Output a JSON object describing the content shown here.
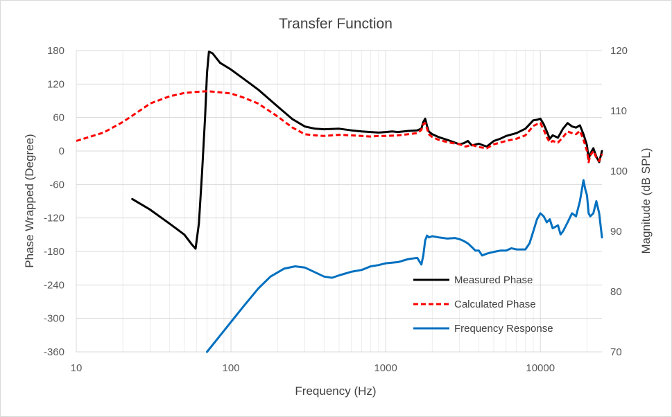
{
  "chart_data": {
    "type": "line",
    "title": "Transfer Function",
    "xlabel": "Frequency (Hz)",
    "ylabel": "Phase Wrapped (Degree)",
    "y2label": "Magnitude (dB SPL)",
    "x_scale": "log",
    "xlim": [
      10,
      25000
    ],
    "ylim": [
      -360,
      180
    ],
    "y2lim": [
      70,
      120
    ],
    "grid": true,
    "legend_position": "bottom-right",
    "x_ticks": [
      "10",
      "100",
      "1000",
      "10000"
    ],
    "y_ticks": [
      "180",
      "120",
      "60",
      "0",
      "-60",
      "-120",
      "-180",
      "-240",
      "-300",
      "-360"
    ],
    "y2_ticks": [
      "120",
      "110",
      "100",
      "90",
      "80",
      "70"
    ],
    "series": [
      {
        "name": "Measured Phase",
        "axis": "left",
        "color": "#000000",
        "style": "solid",
        "points": [
          [
            23,
            -86
          ],
          [
            30,
            -105
          ],
          [
            40,
            -130
          ],
          [
            50,
            -150
          ],
          [
            56,
            -168
          ],
          [
            59,
            -175
          ],
          [
            62,
            -130
          ],
          [
            65,
            -40
          ],
          [
            68,
            60
          ],
          [
            70,
            140
          ],
          [
            72,
            178
          ],
          [
            76,
            175
          ],
          [
            85,
            158
          ],
          [
            100,
            146
          ],
          [
            120,
            130
          ],
          [
            150,
            110
          ],
          [
            200,
            80
          ],
          [
            250,
            57
          ],
          [
            300,
            44
          ],
          [
            350,
            40
          ],
          [
            400,
            39
          ],
          [
            500,
            40
          ],
          [
            600,
            37
          ],
          [
            700,
            35
          ],
          [
            800,
            34
          ],
          [
            900,
            33
          ],
          [
            1000,
            34
          ],
          [
            1100,
            35
          ],
          [
            1200,
            34
          ],
          [
            1400,
            36
          ],
          [
            1600,
            37
          ],
          [
            1700,
            40
          ],
          [
            1750,
            52
          ],
          [
            1800,
            58
          ],
          [
            1850,
            45
          ],
          [
            1900,
            35
          ],
          [
            2000,
            30
          ],
          [
            2200,
            25
          ],
          [
            2500,
            20
          ],
          [
            2800,
            15
          ],
          [
            3000,
            12
          ],
          [
            3200,
            14
          ],
          [
            3400,
            18
          ],
          [
            3600,
            10
          ],
          [
            4000,
            13
          ],
          [
            4500,
            8
          ],
          [
            5000,
            18
          ],
          [
            5500,
            22
          ],
          [
            6000,
            27
          ],
          [
            7000,
            32
          ],
          [
            8000,
            40
          ],
          [
            9000,
            55
          ],
          [
            9500,
            56
          ],
          [
            10000,
            58
          ],
          [
            10500,
            48
          ],
          [
            11000,
            35
          ],
          [
            11500,
            22
          ],
          [
            12000,
            28
          ],
          [
            13000,
            24
          ],
          [
            14000,
            40
          ],
          [
            15000,
            50
          ],
          [
            16000,
            44
          ],
          [
            17000,
            42
          ],
          [
            18000,
            46
          ],
          [
            19000,
            30
          ],
          [
            20000,
            10
          ],
          [
            20500,
            -15
          ],
          [
            21000,
            -5
          ],
          [
            22000,
            5
          ],
          [
            23000,
            -10
          ],
          [
            24000,
            -20
          ],
          [
            25000,
            0
          ]
        ]
      },
      {
        "name": "Calculated Phase",
        "axis": "left",
        "color": "#ff0000",
        "style": "dashed",
        "points": [
          [
            10,
            18
          ],
          [
            15,
            33
          ],
          [
            20,
            52
          ],
          [
            25,
            70
          ],
          [
            30,
            85
          ],
          [
            40,
            98
          ],
          [
            50,
            104
          ],
          [
            60,
            106
          ],
          [
            70,
            107
          ],
          [
            80,
            106
          ],
          [
            100,
            103
          ],
          [
            120,
            96
          ],
          [
            150,
            85
          ],
          [
            200,
            62
          ],
          [
            250,
            42
          ],
          [
            300,
            30
          ],
          [
            350,
            28
          ],
          [
            400,
            27
          ],
          [
            500,
            29
          ],
          [
            600,
            28
          ],
          [
            700,
            27
          ],
          [
            800,
            26
          ],
          [
            900,
            27
          ],
          [
            1000,
            27
          ],
          [
            1200,
            28
          ],
          [
            1400,
            30
          ],
          [
            1600,
            32
          ],
          [
            1700,
            38
          ],
          [
            1750,
            48
          ],
          [
            1800,
            50
          ],
          [
            1850,
            40
          ],
          [
            1900,
            30
          ],
          [
            2000,
            25
          ],
          [
            2200,
            20
          ],
          [
            2500,
            16
          ],
          [
            3000,
            12
          ],
          [
            3300,
            8
          ],
          [
            3600,
            11
          ],
          [
            4000,
            7
          ],
          [
            4500,
            5
          ],
          [
            5000,
            12
          ],
          [
            5500,
            15
          ],
          [
            6000,
            18
          ],
          [
            7000,
            22
          ],
          [
            8000,
            28
          ],
          [
            9000,
            45
          ],
          [
            9500,
            48
          ],
          [
            10000,
            50
          ],
          [
            10500,
            38
          ],
          [
            11000,
            25
          ],
          [
            11500,
            15
          ],
          [
            12000,
            18
          ],
          [
            13000,
            15
          ],
          [
            14000,
            25
          ],
          [
            15000,
            35
          ],
          [
            16000,
            32
          ],
          [
            17000,
            30
          ],
          [
            18000,
            36
          ],
          [
            19000,
            20
          ],
          [
            20000,
            0
          ],
          [
            20500,
            -20
          ],
          [
            21000,
            -8
          ],
          [
            22000,
            0
          ],
          [
            23000,
            -12
          ],
          [
            24000,
            -18
          ],
          [
            25000,
            -5
          ]
        ]
      },
      {
        "name": "Frequency Response",
        "axis": "right",
        "color": "#0070c0",
        "style": "solid",
        "points": [
          [
            70,
            70
          ],
          [
            90,
            73.5
          ],
          [
            120,
            77.5
          ],
          [
            150,
            80.5
          ],
          [
            180,
            82.5
          ],
          [
            220,
            83.8
          ],
          [
            260,
            84.2
          ],
          [
            300,
            84
          ],
          [
            350,
            83.2
          ],
          [
            400,
            82.5
          ],
          [
            450,
            82.3
          ],
          [
            500,
            82.7
          ],
          [
            600,
            83.3
          ],
          [
            700,
            83.6
          ],
          [
            800,
            84.2
          ],
          [
            900,
            84.4
          ],
          [
            1000,
            84.7
          ],
          [
            1200,
            84.9
          ],
          [
            1400,
            85.4
          ],
          [
            1600,
            85.6
          ],
          [
            1700,
            84.5
          ],
          [
            1750,
            86
          ],
          [
            1800,
            88.5
          ],
          [
            1850,
            89.3
          ],
          [
            1900,
            89
          ],
          [
            2000,
            89.2
          ],
          [
            2200,
            89
          ],
          [
            2500,
            88.8
          ],
          [
            2800,
            88.9
          ],
          [
            3000,
            88.7
          ],
          [
            3200,
            88.4
          ],
          [
            3400,
            88
          ],
          [
            3600,
            87.4
          ],
          [
            3800,
            86.8
          ],
          [
            4000,
            86.8
          ],
          [
            4200,
            86
          ],
          [
            4500,
            86.3
          ],
          [
            5000,
            86.6
          ],
          [
            5500,
            86.8
          ],
          [
            6000,
            86.8
          ],
          [
            6500,
            87.2
          ],
          [
            7000,
            87
          ],
          [
            8000,
            87
          ],
          [
            8500,
            88
          ],
          [
            9000,
            90
          ],
          [
            9500,
            92
          ],
          [
            10000,
            93
          ],
          [
            10500,
            92.5
          ],
          [
            11000,
            91.5
          ],
          [
            11500,
            92
          ],
          [
            12000,
            90.5
          ],
          [
            13000,
            91
          ],
          [
            13500,
            89.5
          ],
          [
            14000,
            90
          ],
          [
            15000,
            91.5
          ],
          [
            16000,
            93
          ],
          [
            17000,
            92.5
          ],
          [
            18000,
            95
          ],
          [
            19000,
            98.5
          ],
          [
            19500,
            97
          ],
          [
            20000,
            96
          ],
          [
            20500,
            93
          ],
          [
            21000,
            92.5
          ],
          [
            22000,
            93
          ],
          [
            23000,
            95
          ],
          [
            24000,
            93
          ],
          [
            25000,
            89
          ]
        ]
      }
    ]
  }
}
